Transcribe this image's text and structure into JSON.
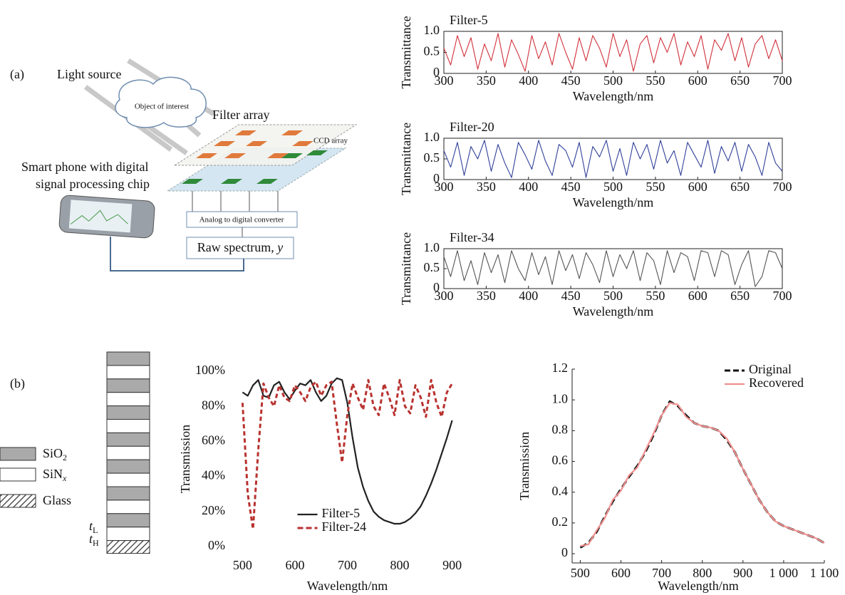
{
  "figure_a": {
    "label": "(a)",
    "light_source": "Light source",
    "object": "Object of interest",
    "filter_array": "Filter array",
    "ccd_array": "CCD array",
    "phone": [
      "Smart phone with digital",
      "signal processing chip"
    ],
    "adc": "Analog to digital converter",
    "raw_spectrum": {
      "text": "Raw spectrum, ",
      "var": "y"
    }
  },
  "figure_b": {
    "label": "(b)",
    "legend": [
      {
        "base": "SiO",
        "sub": "2"
      },
      {
        "base": "SiN",
        "sub": "x"
      },
      {
        "base": "Glass"
      }
    ],
    "thickness": [
      {
        "base": "t",
        "sub": "L"
      },
      {
        "base": "t",
        "sub": "H"
      }
    ]
  },
  "chart_data": [
    {
      "type": "line",
      "title": "Filter-5",
      "xlabel": "Wavelength/nm",
      "ylabel": "Transmittance",
      "color": "#d0303a",
      "xlim": [
        300,
        700
      ],
      "ylim": [
        0,
        1
      ],
      "xticks": [
        300,
        350,
        400,
        450,
        500,
        550,
        600,
        650,
        700
      ],
      "yticks": [
        0,
        0.5,
        {
          "value": 1,
          "label": "1.0"
        }
      ],
      "x": [
        300,
        308,
        316,
        324,
        332,
        340,
        348,
        356,
        364,
        372,
        380,
        388,
        396,
        404,
        412,
        420,
        428,
        436,
        444,
        452,
        460,
        468,
        476,
        484,
        492,
        500,
        508,
        516,
        524,
        532,
        540,
        548,
        556,
        564,
        572,
        580,
        588,
        596,
        604,
        612,
        620,
        628,
        636,
        644,
        652,
        660,
        668,
        676,
        684,
        692,
        700
      ],
      "values": [
        0.6,
        0.2,
        0.9,
        0.4,
        0.85,
        0.1,
        0.7,
        0.3,
        0.95,
        0.15,
        0.8,
        0.45,
        0.05,
        0.9,
        0.35,
        0.75,
        0.2,
        0.95,
        0.5,
        0.1,
        0.85,
        0.3,
        0.9,
        0.6,
        0.15,
        0.95,
        0.4,
        0.8,
        0.05,
        0.7,
        0.9,
        0.25,
        0.85,
        0.5,
        0.95,
        0.2,
        0.75,
        0.4,
        0.9,
        0.1,
        0.8,
        0.55,
        0.95,
        0.3,
        0.85,
        0.15,
        0.7,
        0.9,
        0.35,
        0.8,
        0.3
      ]
    },
    {
      "type": "line",
      "title": "Filter-20",
      "xlabel": "Wavelength/nm",
      "ylabel": "Transmittance",
      "color": "#2f3f9a",
      "xlim": [
        300,
        700
      ],
      "ylim": [
        0,
        1
      ],
      "xticks": [
        300,
        350,
        400,
        450,
        500,
        550,
        600,
        650,
        700
      ],
      "yticks": [
        0,
        0.5,
        {
          "value": 1,
          "label": "1.0"
        }
      ],
      "x": [
        300,
        308,
        316,
        324,
        332,
        340,
        348,
        356,
        364,
        372,
        380,
        388,
        396,
        404,
        412,
        420,
        428,
        436,
        444,
        452,
        460,
        468,
        476,
        484,
        492,
        500,
        508,
        516,
        524,
        532,
        540,
        548,
        556,
        564,
        572,
        580,
        588,
        596,
        604,
        612,
        620,
        628,
        636,
        644,
        652,
        660,
        668,
        676,
        684,
        692,
        700
      ],
      "values": [
        0.7,
        0.3,
        0.9,
        0.1,
        0.8,
        0.5,
        0.95,
        0.2,
        0.85,
        0.4,
        0.05,
        0.9,
        0.6,
        0.25,
        0.95,
        0.45,
        0.1,
        0.85,
        0.7,
        0.3,
        0.9,
        0.05,
        0.8,
        0.55,
        0.95,
        0.2,
        0.75,
        0.1,
        0.9,
        0.5,
        0.85,
        0.25,
        0.95,
        0.4,
        0.7,
        0.1,
        0.9,
        0.6,
        0.3,
        0.95,
        0.15,
        0.8,
        0.45,
        0.9,
        0.2,
        0.85,
        0.55,
        0.1,
        0.9,
        0.4,
        0.2
      ]
    },
    {
      "type": "line",
      "title": "Filter-34",
      "xlabel": "Wavelength/nm",
      "ylabel": "Transmittance",
      "color": "#555555",
      "xlim": [
        300,
        700
      ],
      "ylim": [
        0,
        1
      ],
      "xticks": [
        300,
        350,
        400,
        450,
        500,
        550,
        600,
        650,
        700
      ],
      "yticks": [
        0,
        0.5,
        {
          "value": 1,
          "label": "1.0"
        }
      ],
      "x": [
        300,
        308,
        316,
        324,
        332,
        340,
        348,
        356,
        364,
        372,
        380,
        388,
        396,
        404,
        412,
        420,
        428,
        436,
        444,
        452,
        460,
        468,
        476,
        484,
        492,
        500,
        508,
        516,
        524,
        532,
        540,
        548,
        556,
        564,
        572,
        580,
        588,
        596,
        604,
        612,
        620,
        628,
        636,
        644,
        652,
        660,
        668,
        676,
        684,
        692,
        700
      ],
      "values": [
        0.8,
        0.3,
        0.95,
        0.2,
        0.7,
        0.1,
        0.9,
        0.4,
        0.85,
        0.15,
        0.95,
        0.5,
        0.2,
        0.9,
        0.35,
        0.8,
        0.1,
        0.95,
        0.45,
        0.85,
        0.25,
        0.9,
        0.6,
        0.15,
        0.95,
        0.3,
        0.85,
        0.5,
        0.95,
        0.2,
        0.9,
        0.7,
        0.1,
        0.95,
        0.4,
        0.9,
        0.8,
        0.2,
        0.95,
        0.9,
        0.3,
        0.95,
        0.85,
        0.1,
        0.6,
        0.95,
        0.05,
        0.3,
        0.95,
        0.9,
        0.5
      ]
    },
    {
      "type": "line",
      "xlabel": "Wavelength/nm",
      "ylabel": "Transmission",
      "legend": "lower center",
      "xlim": [
        475,
        925
      ],
      "ylim": [
        0,
        100
      ],
      "xticks": [
        500,
        600,
        700,
        800,
        900
      ],
      "yticks": [
        {
          "value": 0,
          "label": "0%"
        },
        {
          "value": 20,
          "label": "20%"
        },
        {
          "value": 40,
          "label": "40%"
        },
        {
          "value": 60,
          "label": "60%"
        },
        {
          "value": 80,
          "label": "80%"
        },
        {
          "value": 100,
          "label": "100%"
        }
      ],
      "x": [
        500,
        510,
        520,
        530,
        540,
        550,
        560,
        570,
        580,
        590,
        600,
        610,
        620,
        630,
        640,
        650,
        660,
        670,
        680,
        690,
        700,
        710,
        720,
        730,
        740,
        750,
        760,
        770,
        780,
        790,
        800,
        810,
        820,
        830,
        840,
        850,
        860,
        870,
        880,
        890,
        900
      ],
      "series": [
        {
          "name": "Filter-5",
          "color": "#222222",
          "dash": "solid",
          "values": [
            88,
            86,
            92,
            95,
            86,
            85,
            92,
            94,
            88,
            84,
            89,
            93,
            92,
            95,
            88,
            83,
            86,
            93,
            96,
            95,
            82,
            62,
            45,
            34,
            26,
            20,
            17,
            15,
            14,
            13,
            13,
            14,
            16,
            19,
            23,
            29,
            36,
            44,
            53,
            62,
            72
          ]
        },
        {
          "name": "Filter-24",
          "color": "#b8322f",
          "dash": "dashed",
          "values": [
            82,
            30,
            10,
            55,
            93,
            85,
            80,
            92,
            85,
            83,
            92,
            88,
            83,
            91,
            94,
            86,
            92,
            94,
            70,
            48,
            75,
            93,
            85,
            78,
            95,
            80,
            75,
            93,
            85,
            75,
            95,
            80,
            76,
            92,
            85,
            74,
            95,
            82,
            74,
            88,
            93
          ]
        }
      ]
    },
    {
      "type": "line",
      "xlabel": "Wavelength/nm",
      "ylabel": "Transmission",
      "legend": "upper right",
      "xlim": [
        480,
        1100
      ],
      "ylim": [
        -0.06,
        1.2
      ],
      "xticks": [
        500,
        600,
        700,
        800,
        900,
        {
          "value": 1000,
          "label": "1 000"
        },
        {
          "value": 1100,
          "label": "1 100"
        }
      ],
      "yticks": [
        0,
        0.2,
        0.4,
        0.6,
        0.8,
        {
          "value": 1,
          "label": "1.0"
        },
        1.2
      ],
      "x": [
        500,
        520,
        540,
        560,
        580,
        600,
        620,
        640,
        660,
        680,
        700,
        720,
        740,
        760,
        780,
        800,
        820,
        840,
        860,
        880,
        900,
        920,
        940,
        960,
        980,
        1000,
        1020,
        1040,
        1060,
        1080,
        1100
      ],
      "series": [
        {
          "name": "Original",
          "color": "#111111",
          "dash": "dashed",
          "values": [
            0.04,
            0.07,
            0.14,
            0.24,
            0.34,
            0.42,
            0.5,
            0.57,
            0.66,
            0.77,
            0.9,
            0.99,
            0.96,
            0.9,
            0.85,
            0.83,
            0.82,
            0.8,
            0.74,
            0.66,
            0.55,
            0.45,
            0.35,
            0.27,
            0.21,
            0.18,
            0.16,
            0.14,
            0.12,
            0.1,
            0.07
          ]
        },
        {
          "name": "Recovered",
          "color": "#f08f8f",
          "dash": "solid",
          "values": [
            0.05,
            0.06,
            0.15,
            0.23,
            0.35,
            0.41,
            0.51,
            0.56,
            0.67,
            0.78,
            0.9,
            0.98,
            0.97,
            0.89,
            0.85,
            0.83,
            0.82,
            0.8,
            0.75,
            0.66,
            0.55,
            0.45,
            0.35,
            0.27,
            0.21,
            0.18,
            0.16,
            0.14,
            0.12,
            0.1,
            0.07
          ]
        }
      ]
    }
  ]
}
